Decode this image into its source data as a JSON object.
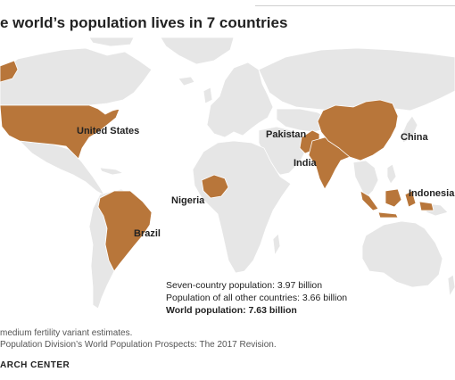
{
  "title": "e world’s population lives in 7 countries",
  "colors": {
    "highlight": "#b8763a",
    "land": "#e6e6e6",
    "border": "#ffffff"
  },
  "map": {
    "highlighted_countries": [
      "United States",
      "Brazil",
      "Nigeria",
      "Pakistan",
      "India",
      "China",
      "Indonesia"
    ],
    "labels": {
      "united_states": "United States",
      "pakistan": "Pakistan",
      "china": "China",
      "india": "India",
      "nigeria": "Nigeria",
      "indonesia": "Indonesia",
      "brazil": "Brazil"
    }
  },
  "stats": {
    "seven_country": "Seven-country population: 3.97 billion",
    "others": "Population of all other countries: 3.66 billion",
    "world": "World population: 7.63 billion"
  },
  "notes": {
    "note": " medium fertility variant estimates.",
    "source": " Population Division’s World Population Prospects: The 2017 Revision."
  },
  "footer": "ARCH CENTER"
}
